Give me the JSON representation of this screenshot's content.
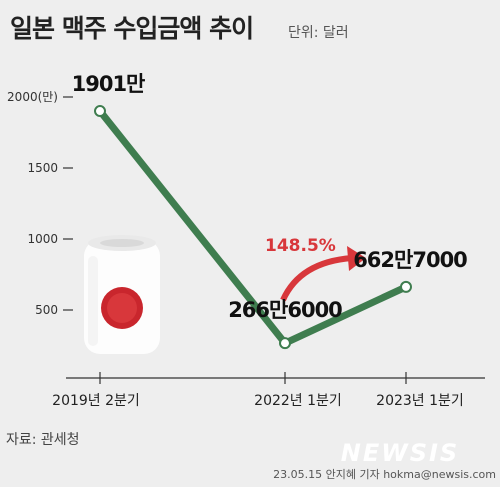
{
  "title": "일본 맥주 수입금액 추이",
  "unit_label": "단위: 달러",
  "source": "자료: 관세청",
  "credit": "23.05.15 안지혜 기자 hokma@newsis.com",
  "watermark": "NEWSIS",
  "growth_label": "148.5%",
  "colors": {
    "line": "#3f7d4f",
    "arrow": "#d8373b",
    "background": "#eeeeee"
  },
  "icons": [
    "beer-can-icon"
  ],
  "chart_data": {
    "type": "line",
    "title": "일본 맥주 수입금액 추이",
    "y_tick_labels": [
      "2000(만)",
      "1500",
      "1000",
      "500"
    ],
    "y_ticks": [
      2000,
      1500,
      1000,
      500
    ],
    "ylim": [
      0,
      2000
    ],
    "grid": false,
    "categories": [
      "2019년 2분기",
      "2022년 1분기",
      "2023년 1분기"
    ],
    "series": [
      {
        "values": [
          1901,
          266.6,
          662.7
        ],
        "data_labels": [
          "1901만",
          "266만6000",
          "662만7000"
        ]
      }
    ]
  }
}
